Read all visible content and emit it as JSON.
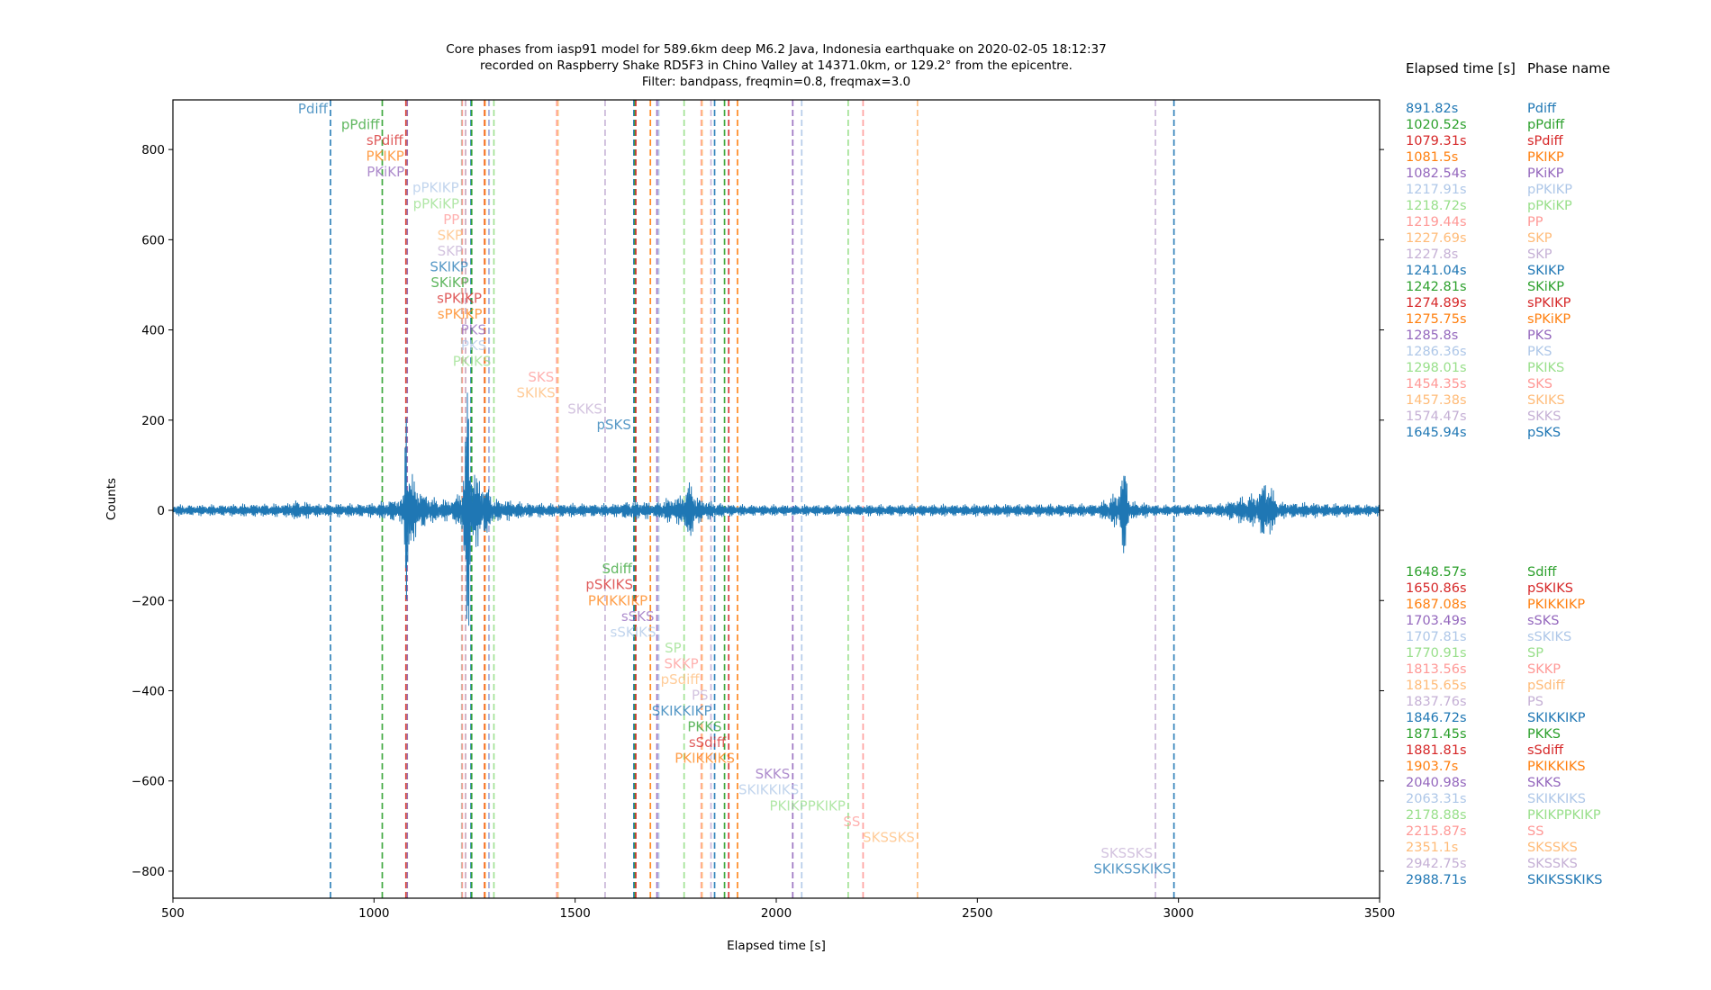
{
  "title_lines": [
    "Core phases from iasp91 model for 589.6km deep M6.2 Java, Indonesia earthquake on 2020-02-05 18:12:37",
    "recorded on Raspberry Shake RD5F3 in Chino Valley at 14371.0km, or 129.2° from the epicentre.",
    "Filter: bandpass, freqmin=0.8, freqmax=3.0"
  ],
  "legend_headers": {
    "time": "Elapsed time [s]",
    "phase": "Phase name"
  },
  "chart_data": {
    "type": "line",
    "xlabel": "Elapsed time [s]",
    "ylabel": "Counts",
    "xlim": [
      500,
      3500
    ],
    "ylim": [
      -860,
      910
    ],
    "xticks": [
      "500",
      "1000",
      "1500",
      "2000",
      "2500",
      "3000",
      "3500"
    ],
    "yticks": [
      "−800",
      "−600",
      "−400",
      "−200",
      "0",
      "200",
      "400",
      "600",
      "800"
    ],
    "xtick_values": [
      500,
      1000,
      1500,
      2000,
      2500,
      3000,
      3500
    ],
    "ytick_values": [
      -800,
      -600,
      -400,
      -200,
      0,
      200,
      400,
      600,
      800
    ],
    "grid": false,
    "trace_color": "#1f77b4",
    "trace_envelope": [
      [
        500,
        12
      ],
      [
        600,
        12
      ],
      [
        700,
        14
      ],
      [
        780,
        14
      ],
      [
        800,
        22
      ],
      [
        860,
        14
      ],
      [
        1000,
        15
      ],
      [
        1075,
        30
      ],
      [
        1080,
        360
      ],
      [
        1083,
        190
      ],
      [
        1090,
        80
      ],
      [
        1120,
        40
      ],
      [
        1160,
        22
      ],
      [
        1200,
        25
      ],
      [
        1220,
        60
      ],
      [
        1228,
        150
      ],
      [
        1234,
        380
      ],
      [
        1240,
        110
      ],
      [
        1250,
        80
      ],
      [
        1275,
        60
      ],
      [
        1300,
        25
      ],
      [
        1400,
        15
      ],
      [
        1600,
        14
      ],
      [
        1640,
        22
      ],
      [
        1700,
        16
      ],
      [
        1720,
        25
      ],
      [
        1760,
        30
      ],
      [
        1790,
        70
      ],
      [
        1800,
        30
      ],
      [
        1840,
        18
      ],
      [
        1900,
        12
      ],
      [
        2100,
        12
      ],
      [
        2800,
        14
      ],
      [
        2850,
        40
      ],
      [
        2865,
        110
      ],
      [
        2880,
        20
      ],
      [
        2950,
        12
      ],
      [
        3100,
        14
      ],
      [
        3200,
        40
      ],
      [
        3215,
        75
      ],
      [
        3250,
        18
      ],
      [
        3500,
        12
      ]
    ],
    "phases": [
      {
        "time": 891.82,
        "label": "891.82s",
        "name": "Pdiff",
        "color": "#1f77b4",
        "y": 890
      },
      {
        "time": 1020.52,
        "label": "1020.52s",
        "name": "pPdiff",
        "color": "#2ca02c",
        "y": 855
      },
      {
        "time": 1079.31,
        "label": "1079.31s",
        "name": "sPdiff",
        "color": "#d62728",
        "y": 820
      },
      {
        "time": 1081.5,
        "label": "1081.5s",
        "name": "PKIKP",
        "color": "#ff7f0e",
        "y": 785
      },
      {
        "time": 1082.54,
        "label": "1082.54s",
        "name": "PKiKP",
        "color": "#9467bd",
        "y": 750
      },
      {
        "time": 1217.91,
        "label": "1217.91s",
        "name": "pPKIKP",
        "color": "#aec7e8",
        "y": 715
      },
      {
        "time": 1218.72,
        "label": "1218.72s",
        "name": "pPKiKP",
        "color": "#98df8a",
        "y": 680
      },
      {
        "time": 1219.44,
        "label": "1219.44s",
        "name": "PP",
        "color": "#ff9896",
        "y": 645
      },
      {
        "time": 1227.69,
        "label": "1227.69s",
        "name": "SKP",
        "color": "#ffbb78",
        "y": 610
      },
      {
        "time": 1227.8,
        "label": "1227.8s",
        "name": "SKP",
        "color": "#c5b0d5",
        "y": 575
      },
      {
        "time": 1241.04,
        "label": "1241.04s",
        "name": "SKIKP",
        "color": "#1f77b4",
        "y": 540
      },
      {
        "time": 1242.81,
        "label": "1242.81s",
        "name": "SKiKP",
        "color": "#2ca02c",
        "y": 505
      },
      {
        "time": 1274.89,
        "label": "1274.89s",
        "name": "sPKIKP",
        "color": "#d62728",
        "y": 470
      },
      {
        "time": 1275.75,
        "label": "1275.75s",
        "name": "sPKiKP",
        "color": "#ff7f0e",
        "y": 435
      },
      {
        "time": 1285.8,
        "label": "1285.8s",
        "name": "PKS",
        "color": "#9467bd",
        "y": 400
      },
      {
        "time": 1286.36,
        "label": "1286.36s",
        "name": "PKS",
        "color": "#aec7e8",
        "y": 365
      },
      {
        "time": 1298.01,
        "label": "1298.01s",
        "name": "PKIKS",
        "color": "#98df8a",
        "y": 330
      },
      {
        "time": 1454.35,
        "label": "1454.35s",
        "name": "SKS",
        "color": "#ff9896",
        "y": 295
      },
      {
        "time": 1457.38,
        "label": "1457.38s",
        "name": "SKIKS",
        "color": "#ffbb78",
        "y": 260
      },
      {
        "time": 1574.47,
        "label": "1574.47s",
        "name": "SKKS",
        "color": "#c5b0d5",
        "y": 225
      },
      {
        "time": 1645.94,
        "label": "1645.94s",
        "name": "pSKS",
        "color": "#1f77b4",
        "y": 190
      },
      {
        "time": 1648.57,
        "label": "1648.57s",
        "name": "Sdiff",
        "color": "#2ca02c",
        "y": -130
      },
      {
        "time": 1650.86,
        "label": "1650.86s",
        "name": "pSKIKS",
        "color": "#d62728",
        "y": -165
      },
      {
        "time": 1687.08,
        "label": "1687.08s",
        "name": "PKIKKIKP",
        "color": "#ff7f0e",
        "y": -200
      },
      {
        "time": 1703.49,
        "label": "1703.49s",
        "name": "sSKS",
        "color": "#9467bd",
        "y": -235
      },
      {
        "time": 1707.81,
        "label": "1707.81s",
        "name": "sSKIKS",
        "color": "#aec7e8",
        "y": -270
      },
      {
        "time": 1770.91,
        "label": "1770.91s",
        "name": "SP",
        "color": "#98df8a",
        "y": -305
      },
      {
        "time": 1813.56,
        "label": "1813.56s",
        "name": "SKKP",
        "color": "#ff9896",
        "y": -340
      },
      {
        "time": 1815.65,
        "label": "1815.65s",
        "name": "pSdiff",
        "color": "#ffbb78",
        "y": -375
      },
      {
        "time": 1837.76,
        "label": "1837.76s",
        "name": "PS",
        "color": "#c5b0d5",
        "y": -410
      },
      {
        "time": 1846.72,
        "label": "1846.72s",
        "name": "SKIKKIKP",
        "color": "#1f77b4",
        "y": -445
      },
      {
        "time": 1871.45,
        "label": "1871.45s",
        "name": "PKKS",
        "color": "#2ca02c",
        "y": -480
      },
      {
        "time": 1881.81,
        "label": "1881.81s",
        "name": "sSdiff",
        "color": "#d62728",
        "y": -515
      },
      {
        "time": 1903.7,
        "label": "1903.7s",
        "name": "PKIKKIKS",
        "color": "#ff7f0e",
        "y": -550
      },
      {
        "time": 2040.98,
        "label": "2040.98s",
        "name": "SKKS",
        "color": "#9467bd",
        "y": -585
      },
      {
        "time": 2063.31,
        "label": "2063.31s",
        "name": "SKIKKIKS",
        "color": "#aec7e8",
        "y": -620
      },
      {
        "time": 2178.88,
        "label": "2178.88s",
        "name": "PKIKPPKIKP",
        "color": "#98df8a",
        "y": -655
      },
      {
        "time": 2215.87,
        "label": "2215.87s",
        "name": "SS",
        "color": "#ff9896",
        "y": -690
      },
      {
        "time": 2351.1,
        "label": "2351.1s",
        "name": "SKSSKS",
        "color": "#ffbb78",
        "y": -725
      },
      {
        "time": 2942.75,
        "label": "2942.75s",
        "name": "SKSSKS",
        "color": "#c5b0d5",
        "y": -760
      },
      {
        "time": 2988.71,
        "label": "2988.71s",
        "name": "SKIKSSKIKS",
        "color": "#1f77b4",
        "y": -795
      }
    ]
  }
}
